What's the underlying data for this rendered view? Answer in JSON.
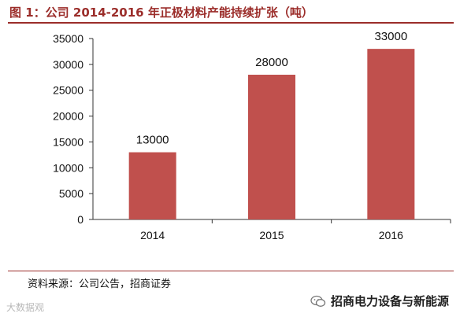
{
  "title": "图 1：公司 2014-2016 年正极材料产能持续扩张（吨）",
  "source": "资料来源：公司公告，招商证券",
  "watermark_left": "大数据观",
  "watermark_right": "招商电力设备与新能源",
  "colors": {
    "bar": "#c0504d",
    "title": "#9b2d2a",
    "axis": "#333333"
  },
  "chart_data": {
    "type": "bar",
    "categories": [
      "2014",
      "2015",
      "2016"
    ],
    "values": [
      13000,
      28000,
      33000
    ],
    "data_labels": [
      "13000",
      "28000",
      "33000"
    ],
    "title": "",
    "xlabel": "",
    "ylabel": "",
    "ylim": [
      0,
      35000
    ],
    "yticks": [
      0,
      5000,
      10000,
      15000,
      20000,
      25000,
      30000,
      35000
    ],
    "grid": false,
    "legend": "none"
  }
}
